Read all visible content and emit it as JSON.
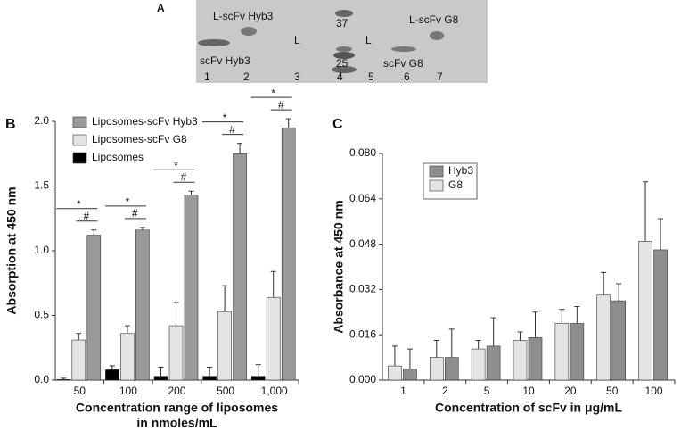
{
  "gel": {
    "panel": "A",
    "labels": [
      "L-scFv Hyb3",
      "L",
      "37",
      "L",
      "L-scFv G8",
      "scFv Hyb3",
      "25",
      "scFv G8"
    ],
    "lanes": [
      "1",
      "2",
      "3",
      "4",
      "5",
      "6",
      "7"
    ]
  },
  "chart_data": [
    {
      "type": "bar",
      "panel": "B",
      "ylabel": "Absorption at 450 nm",
      "xlabel": [
        "Concentration range of liposomes",
        "in nmoles/mL"
      ],
      "categories": [
        "50",
        "100",
        "200",
        "500",
        "1,000"
      ],
      "series": [
        {
          "name": "Liposomes-scFv Hyb3",
          "color": "#9a9a9a",
          "values": [
            1.12,
            1.16,
            1.43,
            1.75,
            1.95
          ],
          "errors": [
            0.04,
            0.02,
            0.03,
            0.08,
            0.07
          ]
        },
        {
          "name": "Liposomes-scFv G8",
          "color": "#e4e4e4",
          "values": [
            0.31,
            0.36,
            0.42,
            0.53,
            0.64
          ],
          "errors": [
            0.05,
            0.06,
            0.18,
            0.2,
            0.2
          ]
        },
        {
          "name": "Liposomes",
          "color": "#000000",
          "values": [
            0.005,
            0.08,
            0.03,
            0.03,
            0.03
          ],
          "errors": [
            0.01,
            0.03,
            0.07,
            0.07,
            0.09
          ]
        }
      ],
      "significance": {
        "star": "*",
        "hash": "#"
      },
      "ylim": [
        0,
        2.0
      ],
      "yticks": [
        {
          "value": 0,
          "label": "0.0"
        },
        0.5,
        {
          "value": 1,
          "label": "1.0"
        },
        1.5,
        {
          "value": 2,
          "label": "2.0"
        }
      ],
      "grid": false,
      "legend": "upper left"
    },
    {
      "type": "bar",
      "panel": "C",
      "ylabel": "Absorbance at 450 nm",
      "xlabel": [
        "Concentration of scFv in μg/mL"
      ],
      "categories": [
        "1",
        "2",
        "5",
        "10",
        "20",
        "50",
        "100"
      ],
      "series": [
        {
          "name": "Hyb3",
          "color": "#8e8e8e",
          "values": [
            0.004,
            0.008,
            0.012,
            0.015,
            0.02,
            0.028,
            0.046
          ],
          "errors": [
            0.007,
            0.01,
            0.01,
            0.009,
            0.006,
            0.006,
            0.011
          ]
        },
        {
          "name": "G8",
          "color": "#e4e4e4",
          "values": [
            0.005,
            0.008,
            0.011,
            0.014,
            0.02,
            0.03,
            0.049
          ],
          "errors": [
            0.007,
            0.006,
            0.003,
            0.003,
            0.005,
            0.008,
            0.021
          ]
        }
      ],
      "ylim": [
        0,
        0.08
      ],
      "yticks": [
        {
          "value": 0,
          "label": "0.000"
        },
        {
          "value": 0.016,
          "label": "0.016"
        },
        {
          "value": 0.032,
          "label": "0.032"
        },
        {
          "value": 0.048,
          "label": "0.048"
        },
        {
          "value": 0.064,
          "label": "0.064"
        },
        {
          "value": 0.08,
          "label": "0.080"
        }
      ],
      "grid": false,
      "legend": "upper left"
    }
  ]
}
